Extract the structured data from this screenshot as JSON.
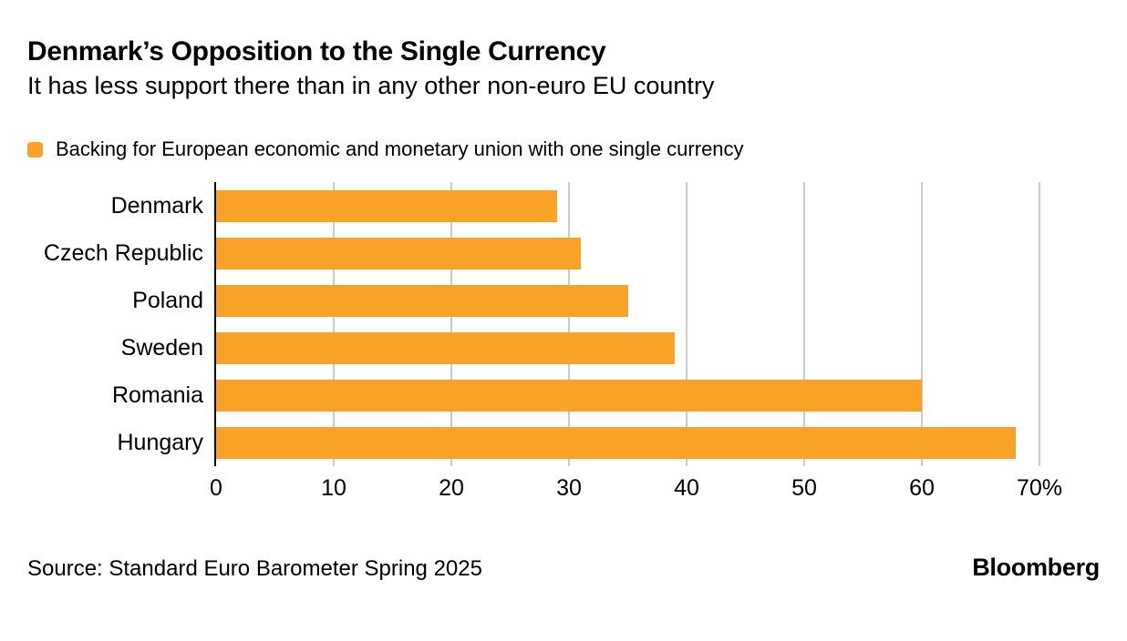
{
  "header": {
    "title": "Denmark’s Opposition to the Single Currency",
    "subtitle": "It has less support there than in any other non-euro EU country"
  },
  "legend": {
    "label": "Backing for European economic and monetary union with one single currency",
    "swatch_color": "#FAA228"
  },
  "chart_data": {
    "type": "bar",
    "orientation": "horizontal",
    "title": "Denmark’s Opposition to the Single Currency",
    "series_name": "Backing for European economic and monetary union with one single currency",
    "categories": [
      "Denmark",
      "Czech Republic",
      "Poland",
      "Sweden",
      "Romania",
      "Hungary"
    ],
    "values": [
      29,
      31,
      35,
      39,
      60,
      68
    ],
    "unit": "%",
    "xlim": [
      0,
      70
    ],
    "xticks": [
      0,
      10,
      20,
      30,
      40,
      50,
      60,
      70
    ],
    "xtick_labels": [
      "0",
      "10",
      "20",
      "30",
      "40",
      "50",
      "60",
      "70%"
    ],
    "grid": "vertical",
    "bar_color": "#FAA228",
    "gridline_color": "#CBCBCB",
    "axis_color": "#000000",
    "legend_position": "top-left"
  },
  "footer": {
    "source": "Source: Standard Euro Barometer Spring 2025",
    "brand": "Bloomberg"
  },
  "colors": {
    "background": "#FFFFFF",
    "text": "#000000",
    "bar": "#FAA228",
    "gridline": "#CBCBCB",
    "axis": "#000000"
  }
}
